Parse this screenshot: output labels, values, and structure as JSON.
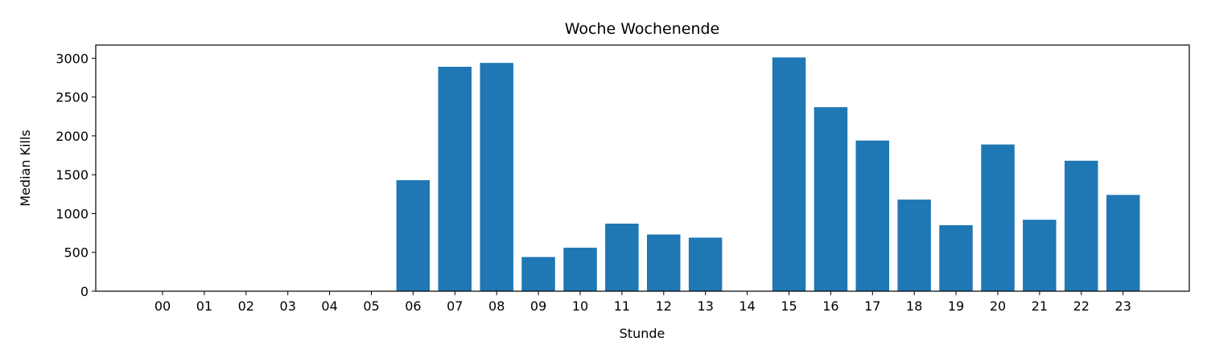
{
  "chart_data": {
    "type": "bar",
    "title": "Woche Wochenende",
    "xlabel": "Stunde",
    "ylabel": "Median Kills",
    "categories": [
      "00",
      "01",
      "02",
      "03",
      "04",
      "05",
      "06",
      "07",
      "08",
      "09",
      "10",
      "11",
      "12",
      "13",
      "14",
      "15",
      "16",
      "17",
      "18",
      "19",
      "20",
      "21",
      "22",
      "23"
    ],
    "values": [
      0,
      0,
      0,
      0,
      0,
      0,
      1430,
      2890,
      2940,
      440,
      560,
      870,
      730,
      690,
      0,
      3010,
      2370,
      1940,
      1180,
      850,
      1890,
      920,
      1680,
      1240
    ],
    "ylim": [
      0,
      3170
    ],
    "yticks": [
      0,
      500,
      1000,
      1500,
      2000,
      2500,
      3000
    ],
    "ytick_labels": [
      "0",
      "500",
      "1000",
      "1500",
      "2000",
      "2500",
      "3000"
    ],
    "grid": false,
    "bar_color": "#1f77b4"
  }
}
